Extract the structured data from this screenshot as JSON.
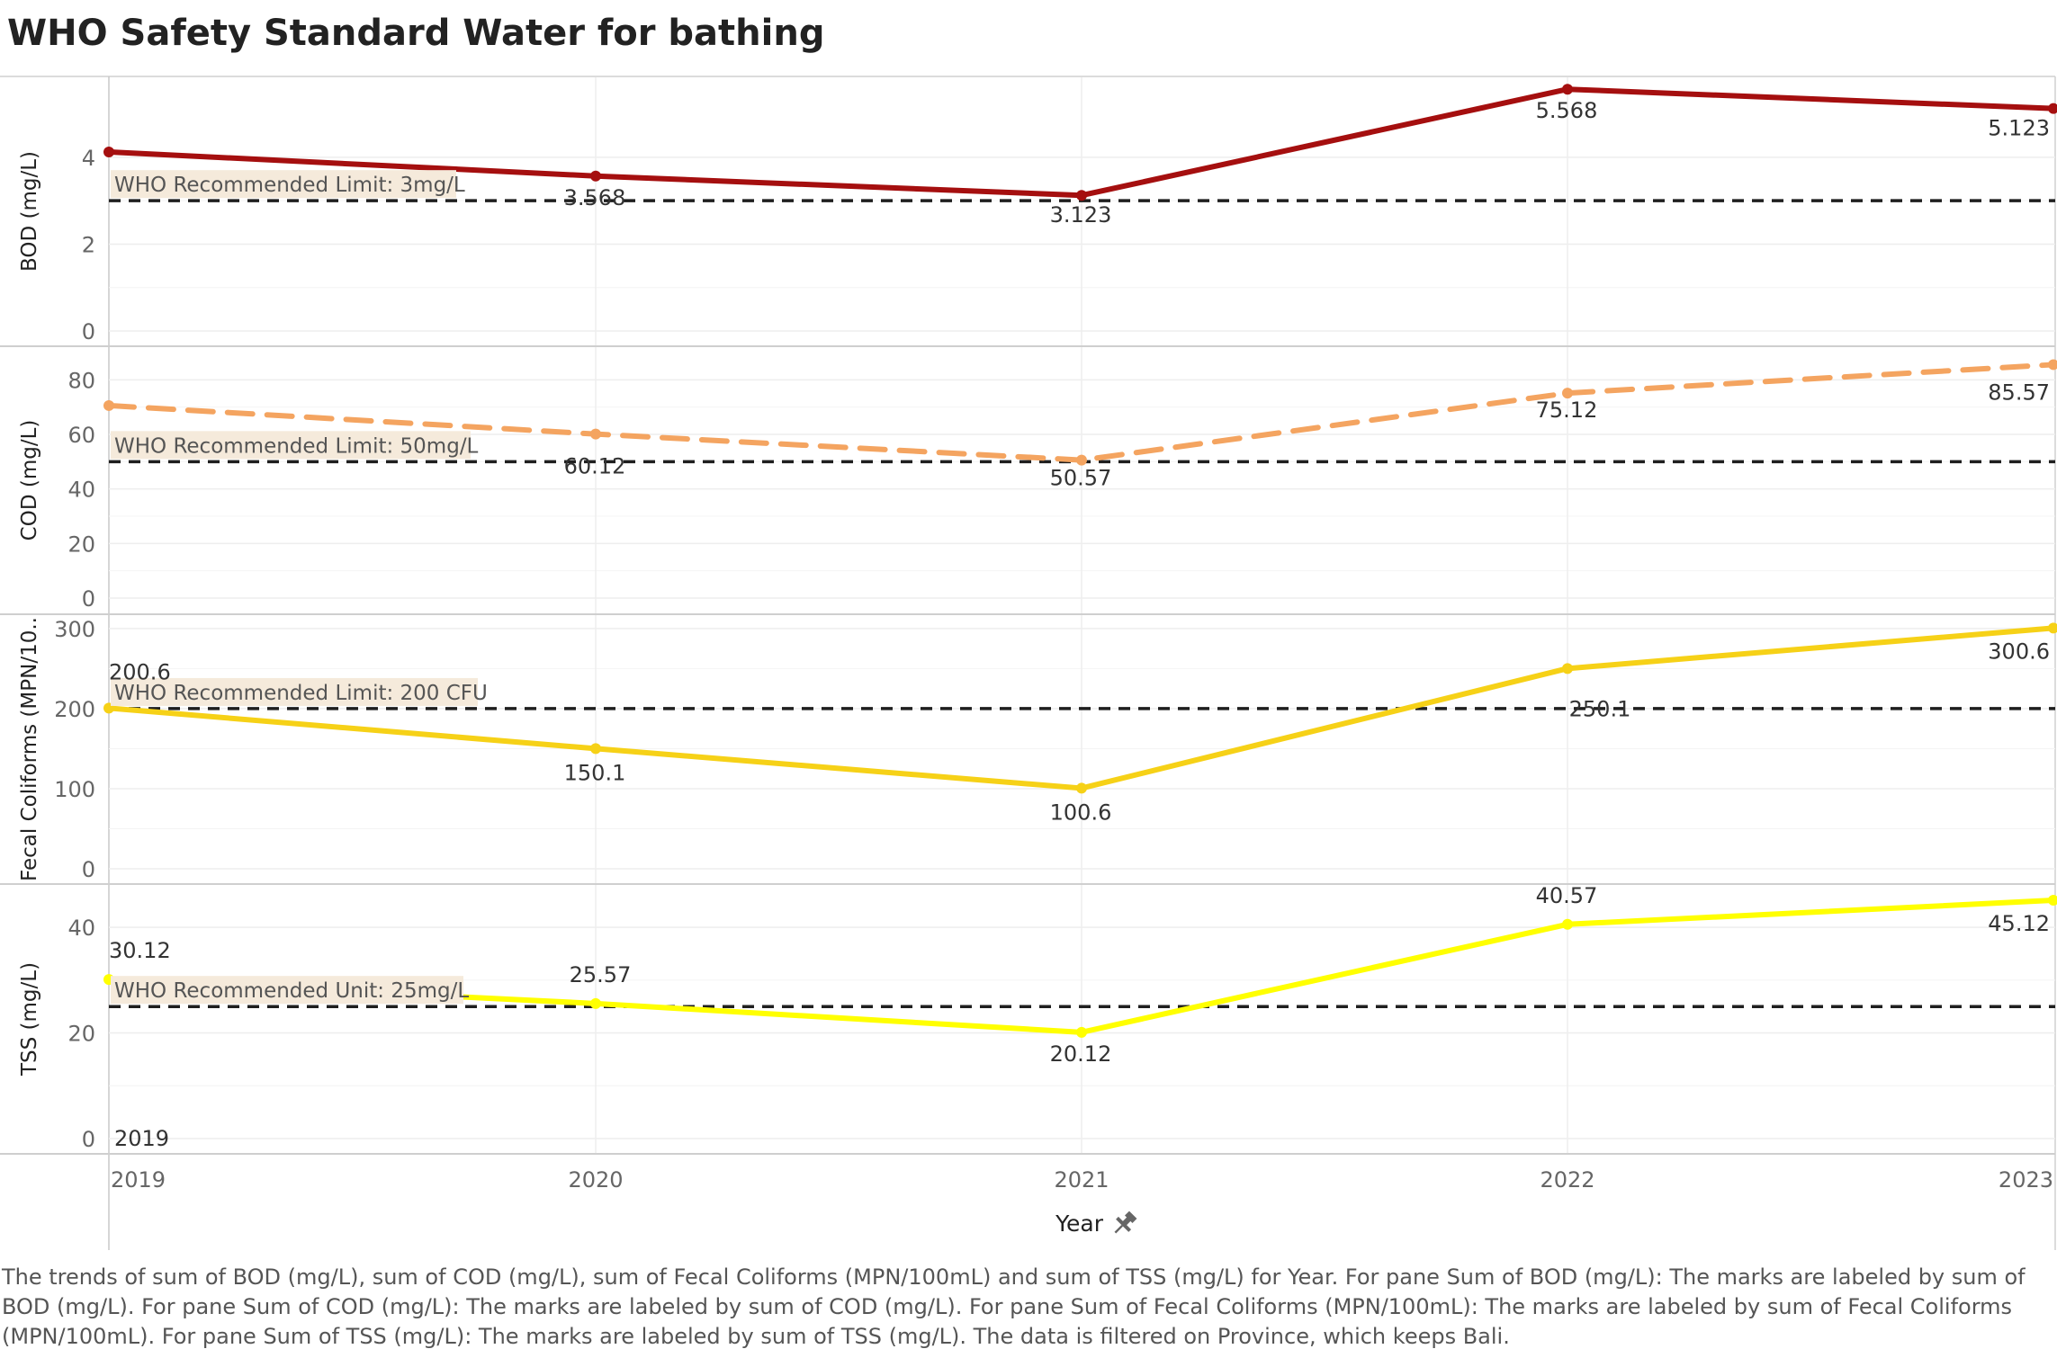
{
  "chart_data": {
    "type": "line",
    "title": "WHO Safety Standard Water for bathing",
    "x": [
      "2019",
      "2020",
      "2021",
      "2022",
      "2023"
    ],
    "xlabel": "Year",
    "x_pin_icon": "pin-icon",
    "grid": true,
    "panes": [
      {
        "ylabel": "BOD (mg/L)",
        "values": [
          4.123,
          3.568,
          3.123,
          5.568,
          5.123
        ],
        "point_labels": [
          "",
          "3.568",
          "3.123",
          "5.568",
          "5.123"
        ],
        "ylim": [
          0,
          5.8
        ],
        "yticks": [
          "0",
          "2",
          "4"
        ],
        "color": "#a50f0f",
        "line_style": "solid",
        "reference": {
          "value": 3,
          "label": "WHO Recommended Limit: 3mg/L"
        }
      },
      {
        "ylabel": "COD (mg/L)",
        "values": [
          70.57,
          60.12,
          50.57,
          75.12,
          85.57
        ],
        "point_labels": [
          "",
          "60.12",
          "50.57",
          "75.12",
          "85.57"
        ],
        "ylim": [
          0,
          90
        ],
        "yticks": [
          "0",
          "20",
          "40",
          "60",
          "80"
        ],
        "color": "#f4a460",
        "line_style": "dashed",
        "reference": {
          "value": 50,
          "label": "WHO Recommended Limit: 50mg/L"
        }
      },
      {
        "ylabel": "Fecal Coliforms (MPN/10..",
        "values": [
          200.6,
          150.1,
          100.6,
          250.1,
          300.6
        ],
        "point_labels": [
          "200.6",
          "150.1",
          "100.6",
          "250.1",
          "300.6"
        ],
        "ylim": [
          0,
          310
        ],
        "yticks": [
          "0",
          "100",
          "200",
          "300"
        ],
        "color": "#f6d117",
        "line_style": "solid",
        "reference": {
          "value": 200,
          "label": "WHO Recommended Limit: 200 CFU"
        }
      },
      {
        "ylabel": "TSS (mg/L)",
        "values": [
          30.12,
          25.57,
          20.12,
          40.57,
          45.12
        ],
        "point_labels": [
          "30.12",
          "25.57",
          "20.12",
          "40.57",
          "45.12"
        ],
        "ylim": [
          0,
          47
        ],
        "yticks": [
          "0",
          "20",
          "40"
        ],
        "color": "#ffff00",
        "line_style": "solid",
        "reference": {
          "value": 25,
          "label": "WHO Recommended Unit: 25mg/L"
        },
        "extra_label": "2019"
      }
    ]
  },
  "caption": "The trends of sum of BOD (mg/L), sum of COD (mg/L), sum of Fecal Coliforms (MPN/100mL) and sum of TSS (mg/L) for Year.  For pane Sum of BOD (mg/L):  The marks are labeled by sum of BOD (mg/L).  For pane Sum of COD (mg/L):  The marks are labeled by sum of COD (mg/L).  For pane Sum of Fecal Coliforms (MPN/100mL):  The marks are labeled by sum of Fecal Coliforms (MPN/100mL).  For pane Sum of TSS (mg/L):  The marks are labeled by sum of TSS (mg/L). The data is filtered on Province, which keeps Bali."
}
